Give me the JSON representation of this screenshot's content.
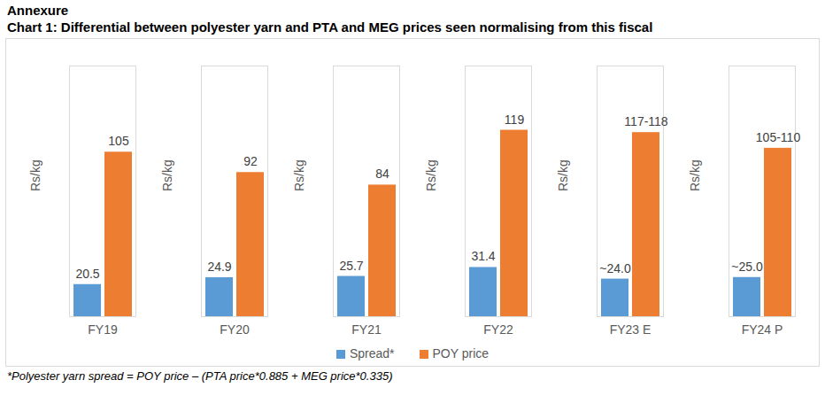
{
  "chart_data": {
    "type": "bar",
    "section_title": "Annexure",
    "title": "Chart 1: Differential between polyester yarn and PTA and MEG prices seen normalising from this fiscal",
    "ylabel": "Rs/kg",
    "categories": [
      "FY19",
      "FY20",
      "FY21",
      "FY22",
      "FY23 E",
      "FY24 P"
    ],
    "series": [
      {
        "name": "Spread*",
        "color": "#5B9BD5",
        "values": [
          20.5,
          24.9,
          25.7,
          31.4,
          24,
          25
        ],
        "value_labels": [
          "20.5",
          "24.9",
          "25.7",
          "31.4",
          "~24.0",
          "~25.0"
        ]
      },
      {
        "name": "POY price",
        "color": "#ED7D31",
        "values": [
          105,
          92,
          84,
          119,
          117.5,
          107.5
        ],
        "value_labels": [
          "105",
          "92",
          "84",
          "119",
          "117-118",
          "105-110"
        ]
      }
    ],
    "ylim": [
      0,
      160
    ],
    "yticks": [],
    "tick_labels": "x",
    "data_labels": true,
    "grid": false,
    "legend": "bottom",
    "footnote": "*Polyester yarn spread = POY price – (PTA price*0.885 + MEG price*0.335)"
  }
}
